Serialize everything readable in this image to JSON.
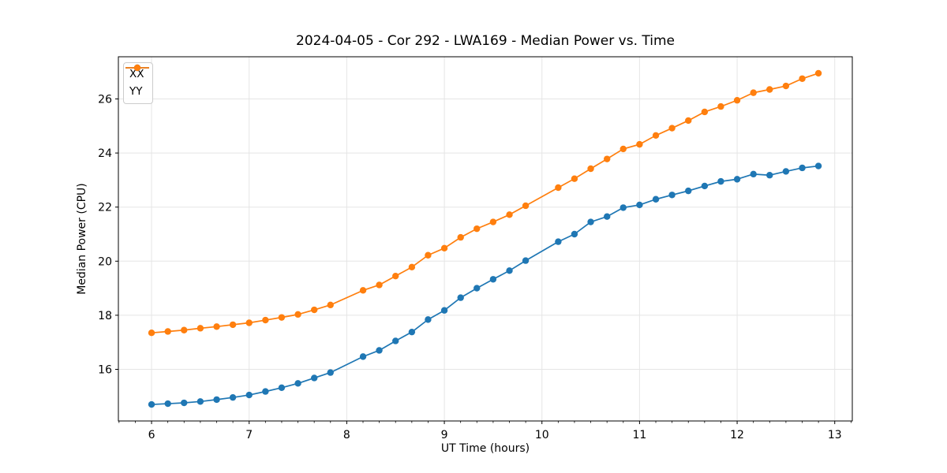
{
  "chart_data": {
    "type": "line",
    "title": "2024-04-05 - Cor 292 - LWA169 - Median Power vs. Time",
    "xlabel": "UT Time (hours)",
    "ylabel": "Median Power (CPU)",
    "x": [
      6.0,
      6.167,
      6.333,
      6.5,
      6.667,
      6.833,
      7.0,
      7.167,
      7.333,
      7.5,
      7.667,
      7.833,
      8.167,
      8.333,
      8.5,
      8.667,
      8.833,
      9.0,
      9.167,
      9.333,
      9.5,
      9.667,
      9.833,
      10.167,
      10.333,
      10.5,
      10.667,
      10.833,
      11.0,
      11.167,
      11.333,
      11.5,
      11.667,
      11.833,
      12.0,
      12.167,
      12.333,
      12.5,
      12.667,
      12.833
    ],
    "series": [
      {
        "name": "XX",
        "color": "#1f77b4",
        "values": [
          14.7,
          14.73,
          14.76,
          14.81,
          14.88,
          14.96,
          15.05,
          15.18,
          15.32,
          15.48,
          15.68,
          15.88,
          16.47,
          16.7,
          17.05,
          17.38,
          17.84,
          18.18,
          18.65,
          19.0,
          19.33,
          19.65,
          20.02,
          20.72,
          21.0,
          21.45,
          21.65,
          21.98,
          22.08,
          22.29,
          22.45,
          22.6,
          22.78,
          22.95,
          23.03,
          23.22,
          23.18,
          23.32,
          23.45,
          23.52
        ]
      },
      {
        "name": "YY",
        "color": "#ff7f0e",
        "values": [
          17.35,
          17.4,
          17.45,
          17.52,
          17.58,
          17.65,
          17.72,
          17.82,
          17.92,
          18.03,
          18.2,
          18.38,
          18.92,
          19.12,
          19.45,
          19.78,
          20.22,
          20.48,
          20.88,
          21.2,
          21.45,
          21.72,
          22.05,
          22.72,
          23.05,
          23.42,
          23.78,
          24.15,
          24.32,
          24.65,
          24.92,
          25.2,
          25.52,
          25.72,
          25.95,
          26.23,
          26.35,
          26.48,
          26.75,
          26.95
        ]
      }
    ],
    "xlim": [
      5.66,
      13.18
    ],
    "ylim": [
      14.09,
      27.56
    ],
    "xticks": [
      6,
      7,
      8,
      9,
      10,
      11,
      12,
      13
    ],
    "yticks": [
      16,
      18,
      20,
      22,
      24,
      26
    ],
    "x_minor_step": 0.1667,
    "grid": true,
    "legend_position": "upper left",
    "marker": "o",
    "grid_color": "#e5e5e5",
    "spine_color": "#000000"
  }
}
